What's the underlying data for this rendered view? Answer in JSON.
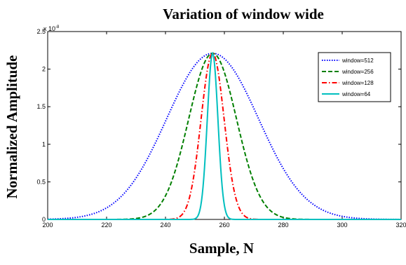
{
  "chart_data": {
    "type": "line",
    "title": "Variation of window wide",
    "xlabel": "Sample, N",
    "ylabel": "Normalized Amplitude",
    "xlim": [
      200,
      320
    ],
    "ylim": [
      0,
      2.5
    ],
    "y_exponent_label": "x 10",
    "y_exponent_power": "-8",
    "xticks": [
      "200",
      "220",
      "240",
      "260",
      "280",
      "300",
      "320"
    ],
    "yticks": [
      "0",
      "0.5",
      "1",
      "1.5",
      "2",
      "2.5"
    ],
    "grid": false,
    "legend_position": "top-right",
    "series": [
      {
        "name": "window=512",
        "center": 256,
        "sigma": 15.6,
        "peak": 2.21,
        "color": "#0000ff",
        "style": "dotted"
      },
      {
        "name": "window=256",
        "center": 256,
        "sigma": 8.1,
        "peak": 2.21,
        "color": "#007f00",
        "style": "dashed"
      },
      {
        "name": "window=128",
        "center": 256,
        "sigma": 3.9,
        "peak": 2.21,
        "color": "#ff0000",
        "style": "dashdot"
      },
      {
        "name": "window=64",
        "center": 256,
        "sigma": 1.8,
        "peak": 2.21,
        "color": "#00bfbf",
        "style": "solid"
      }
    ]
  }
}
